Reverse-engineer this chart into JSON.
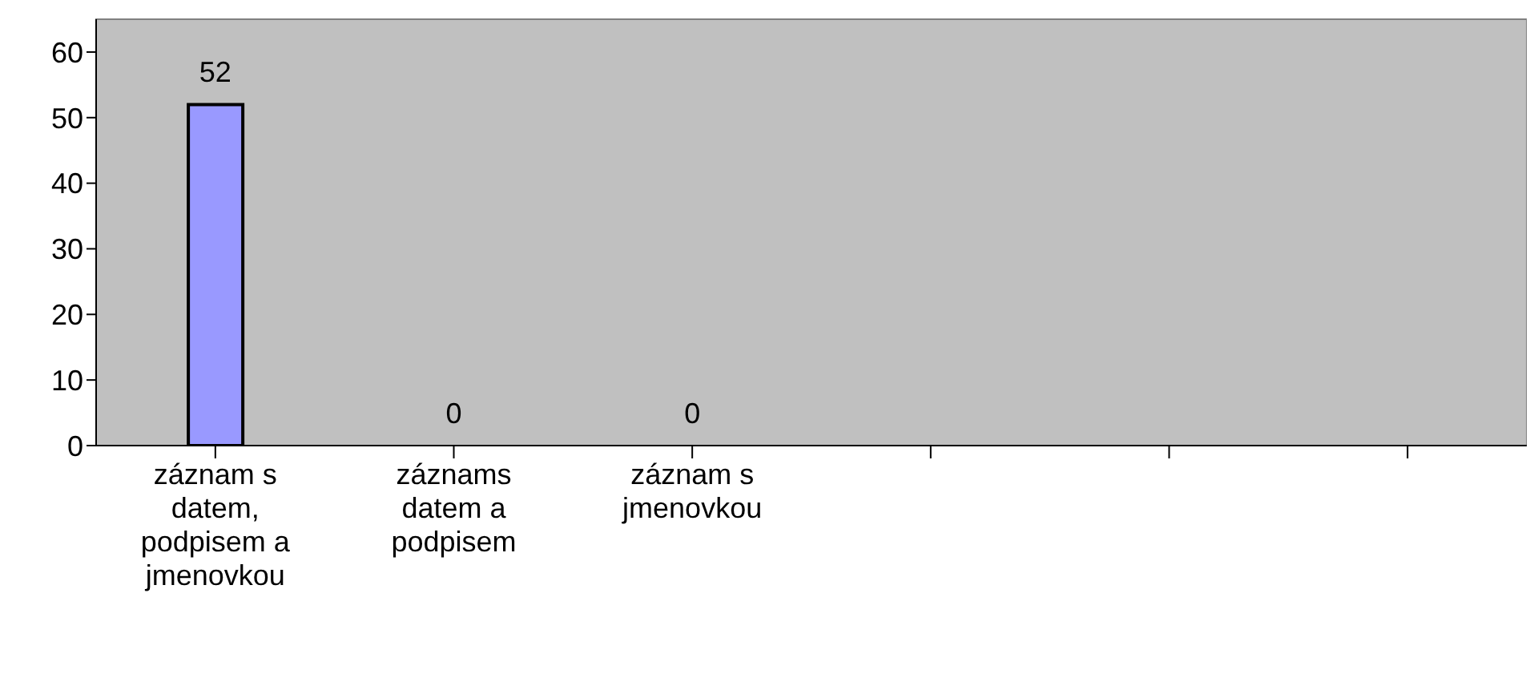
{
  "chart_data": {
    "type": "bar",
    "categories": [
      "záznam s datem, podpisem a jmenovkou",
      "záznams datem a podpisem",
      "záznam s jmenovkou",
      null,
      null,
      null
    ],
    "values": [
      52,
      0,
      0,
      null,
      null,
      null
    ],
    "color": "#9999ff",
    "ylim": [
      0,
      65
    ],
    "yticks": [
      0,
      10,
      20,
      30,
      40,
      50,
      60
    ],
    "data_labels": true
  }
}
